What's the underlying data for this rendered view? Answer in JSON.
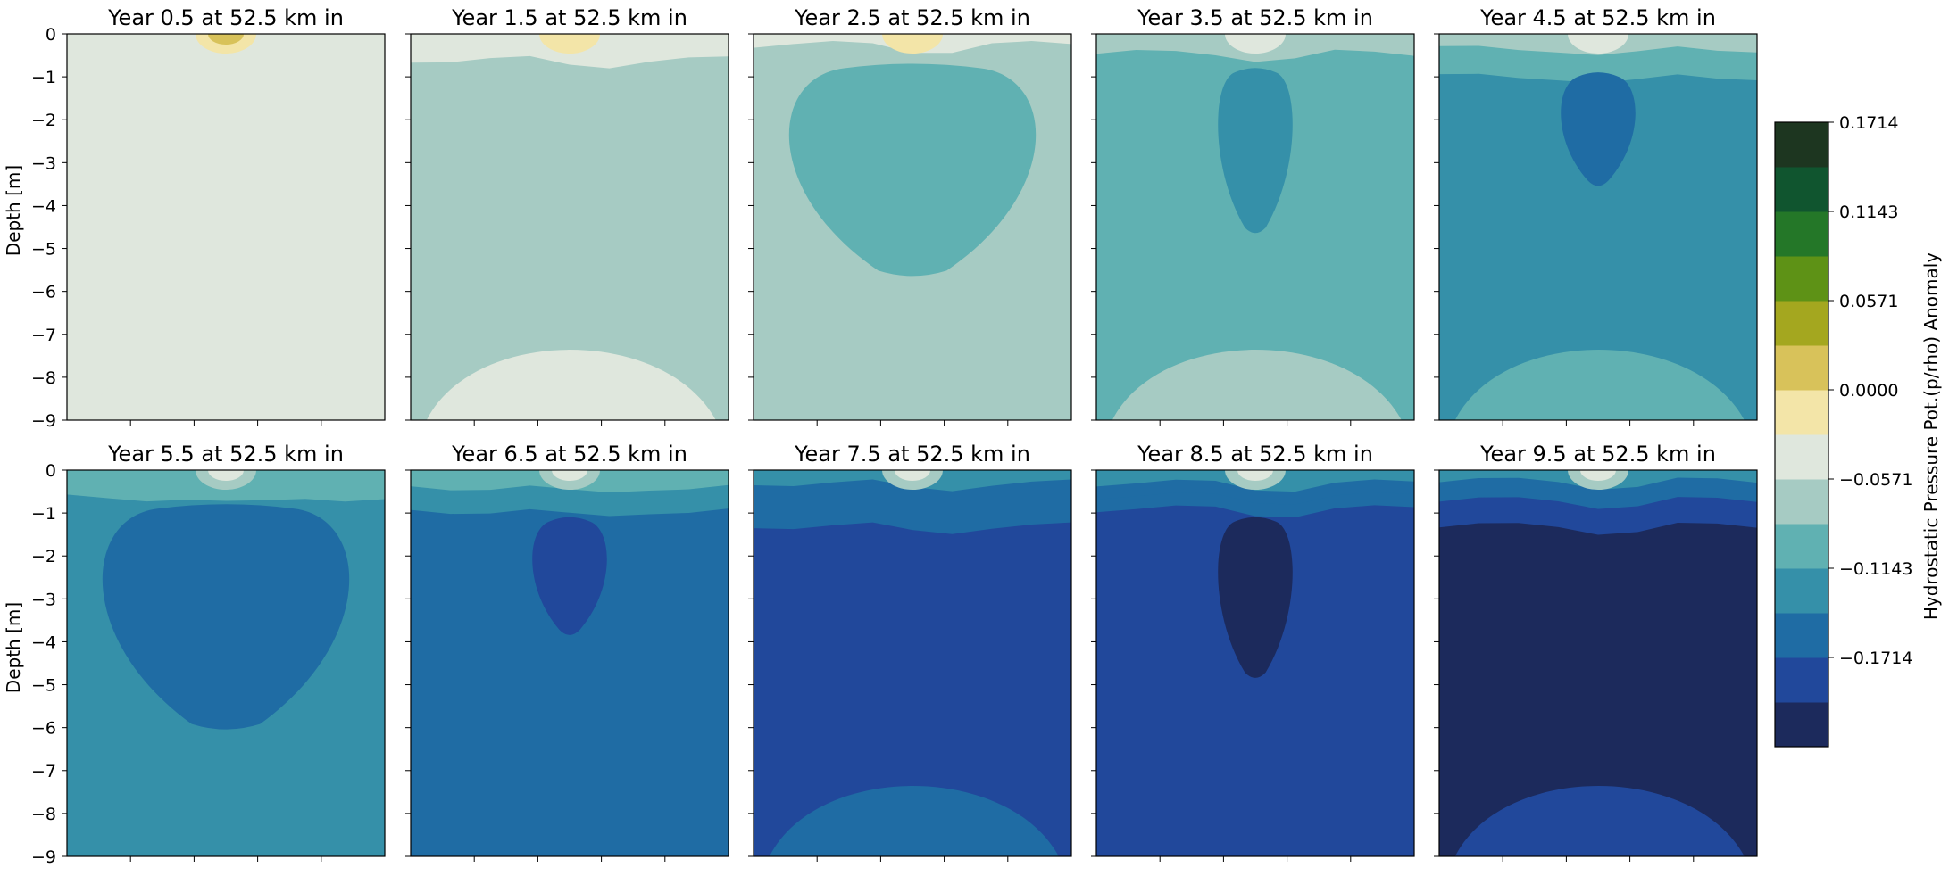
{
  "figure": {
    "ylabel": "Depth [m]",
    "colorbar_label": "Hydrostatic Pressure Pot.(p/rho) Anomaly"
  },
  "colorbar": {
    "levels": [
      {
        "color": "#1c2a5c"
      },
      {
        "color": "#21489b"
      },
      {
        "color": "#1f6ca4"
      },
      {
        "color": "#3590a9"
      },
      {
        "color": "#60b1b2"
      },
      {
        "color": "#a6cbc3"
      },
      {
        "color": "#dfe7dd"
      },
      {
        "color": "#f3e5a8"
      },
      {
        "color": "#d8c25a"
      },
      {
        "color": "#a4a71f"
      },
      {
        "color": "#5e9216"
      },
      {
        "color": "#247728"
      },
      {
        "color": "#10552f"
      },
      {
        "color": "#1d3620"
      }
    ],
    "ticks": [
      {
        "label": "−0.1714",
        "level_index": 1
      },
      {
        "label": "−0.1143",
        "level_index": 3
      },
      {
        "label": "−0.0571",
        "level_index": 5
      },
      {
        "label": "0.0000",
        "level_index": 7
      },
      {
        "label": "0.0571",
        "level_index": 9
      },
      {
        "label": "0.1143",
        "level_index": 11
      },
      {
        "label": "0.1714",
        "level_index": 13
      }
    ]
  },
  "chart_data": {
    "type": "heatmap",
    "ylabel": "Depth [m]",
    "ylim": [
      -9,
      0
    ],
    "yticks": [
      "0",
      "−1",
      "−2",
      "−3",
      "−4",
      "−5",
      "−6",
      "−7",
      "−8",
      "−9"
    ],
    "colorbar_label": "Hydrostatic Pressure Pot.(p/rho) Anomaly",
    "colorbar_ticks": [
      -0.1714,
      -0.1143,
      -0.0571,
      0.0,
      0.0571,
      0.1143,
      0.1714
    ],
    "panels": [
      {
        "title": "Year 0.5 at 52.5 km in",
        "background_level": 6,
        "bottom_level": 6,
        "bands": [],
        "blob": null,
        "surface": [
          7,
          8
        ]
      },
      {
        "title": "Year 1.5 at 52.5 km in",
        "background_level": 5,
        "bottom_level": 6,
        "bands": [
          {
            "level": 6,
            "depth_to": -0.6
          }
        ],
        "blob": null,
        "surface": [
          7
        ]
      },
      {
        "title": "Year 2.5 at 52.5 km in",
        "background_level": 5,
        "bottom_level": null,
        "bands": [
          {
            "level": 6,
            "depth_to": -0.25
          }
        ],
        "blob": {
          "level": 4,
          "top": -0.8,
          "bottom": -5.6
        },
        "surface": [
          7
        ]
      },
      {
        "title": "Year 3.5 at 52.5 km in",
        "background_level": 4,
        "bottom_level": 5,
        "bands": [
          {
            "level": 5,
            "depth_to": -0.45
          }
        ],
        "blob": {
          "level": 3,
          "top": -0.9,
          "bottom": -4.6
        },
        "surface": [
          6
        ]
      },
      {
        "title": "Year 4.5 at 52.5 km in",
        "background_level": 3,
        "bottom_level": 4,
        "bands": [
          {
            "level": 5,
            "depth_to": -0.35
          },
          {
            "level": 4,
            "depth_to": -1.0
          }
        ],
        "blob": {
          "level": 2,
          "top": -1.0,
          "bottom": -3.5
        },
        "surface": [
          6
        ]
      },
      {
        "title": "Year 5.5 at 52.5 km in",
        "background_level": 3,
        "bottom_level": null,
        "bands": [
          {
            "level": 4,
            "depth_to": -0.65
          }
        ],
        "blob": {
          "level": 2,
          "top": -0.9,
          "bottom": -6.0
        },
        "surface": [
          5,
          6
        ]
      },
      {
        "title": "Year 6.5 at 52.5 km in",
        "background_level": 2,
        "bottom_level": null,
        "bands": [
          {
            "level": 4,
            "depth_to": -0.4
          },
          {
            "level": 3,
            "depth_to": -0.95
          }
        ],
        "blob": {
          "level": 1,
          "top": -1.2,
          "bottom": -3.8
        },
        "surface": [
          5,
          6
        ]
      },
      {
        "title": "Year 7.5 at 52.5 km in",
        "background_level": 1,
        "bottom_level": 2,
        "bands": [
          {
            "level": 3,
            "depth_to": -0.3
          },
          {
            "level": 2,
            "depth_to": -1.3
          }
        ],
        "blob": null,
        "surface": [
          5,
          6
        ]
      },
      {
        "title": "Year 8.5 at 52.5 km in",
        "background_level": 1,
        "bottom_level": null,
        "bands": [
          {
            "level": 3,
            "depth_to": -0.3
          },
          {
            "level": 2,
            "depth_to": -0.6
          },
          {
            "level": 2,
            "depth_to": -0.9
          }
        ],
        "blob": {
          "level": 0,
          "top": -1.2,
          "bottom": -4.8
        },
        "surface": [
          5,
          6
        ]
      },
      {
        "title": "Year 9.5 at 52.5 km in",
        "background_level": 0,
        "bottom_level": 1,
        "bands": [
          {
            "level": 3,
            "depth_to": -0.25
          },
          {
            "level": 2,
            "depth_to": -0.7
          },
          {
            "level": 1,
            "depth_to": -1.3
          }
        ],
        "blob": null,
        "surface": [
          5,
          6
        ]
      }
    ]
  }
}
